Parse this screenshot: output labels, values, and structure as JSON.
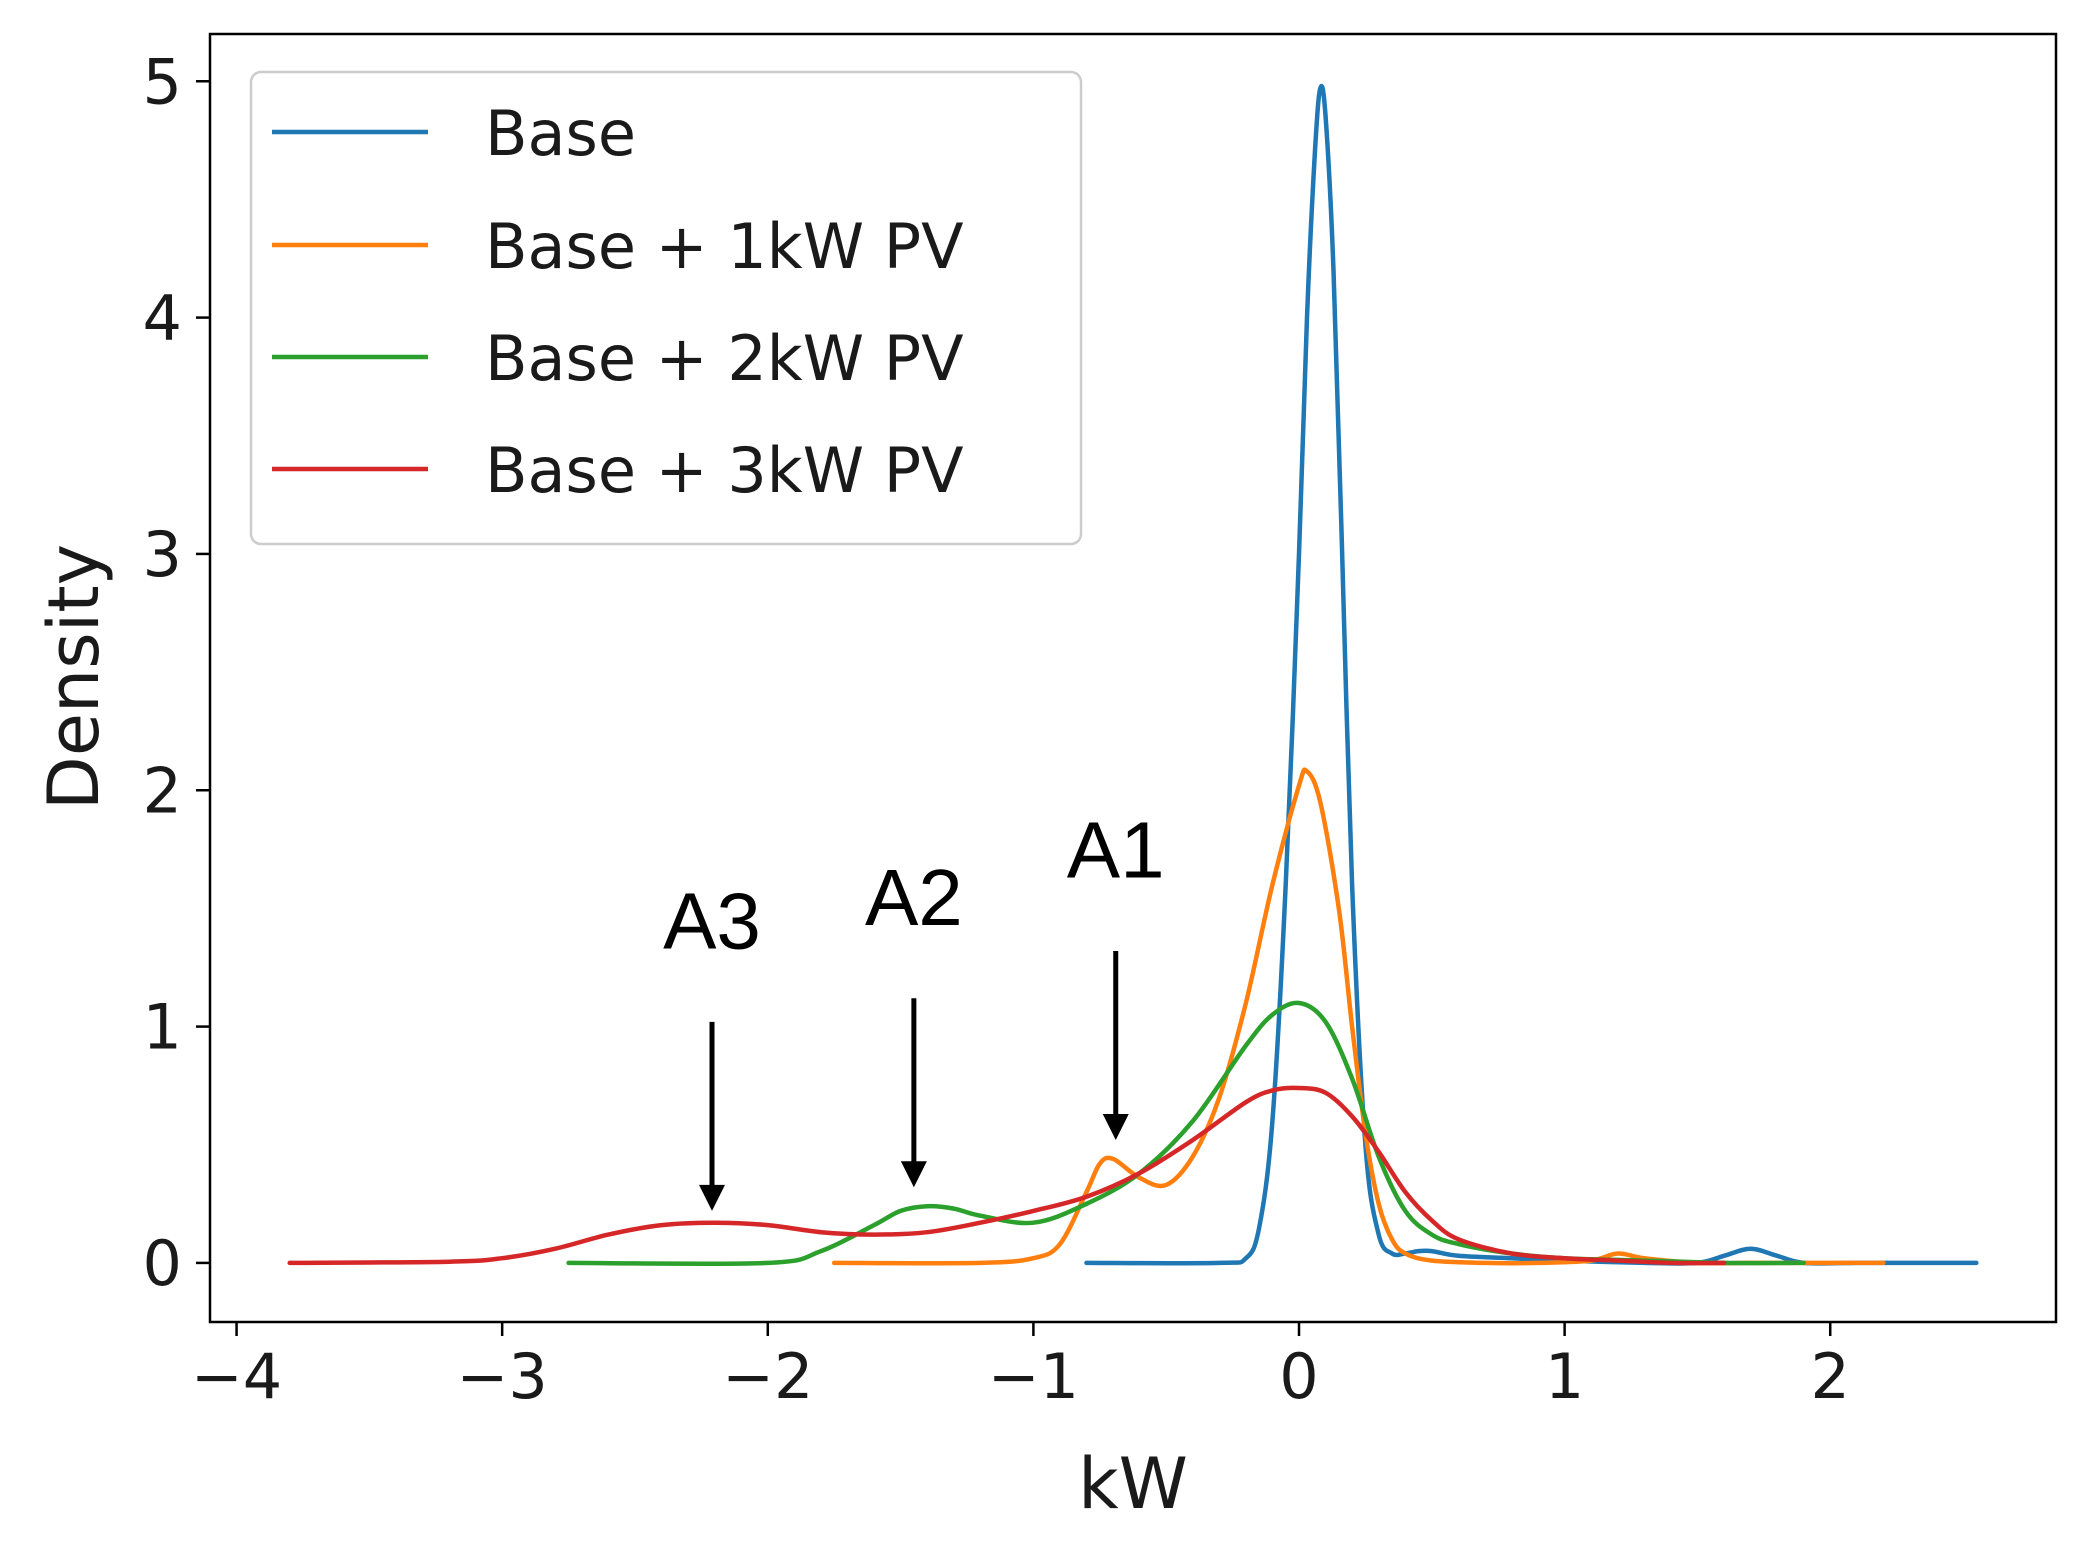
{
  "chart_data": {
    "type": "line",
    "title": "",
    "xlabel": "kW",
    "ylabel": "Density",
    "xlim": [
      -4.1,
      2.85
    ],
    "ylim": [
      -0.25,
      5.2
    ],
    "xticks": [
      -4,
      -3,
      -2,
      -1,
      0,
      1,
      2
    ],
    "xtick_labels": [
      "−4",
      "−3",
      "−2",
      "−1",
      "0",
      "1",
      "2"
    ],
    "yticks": [
      0,
      1,
      2,
      3,
      4,
      5
    ],
    "ytick_labels": [
      "0",
      "1",
      "2",
      "3",
      "4",
      "5"
    ],
    "grid": false,
    "legend_position": "top-left",
    "series": [
      {
        "name": "Base",
        "color": "#1f77b4",
        "x": [
          -0.8,
          -0.3,
          -0.2,
          -0.15,
          -0.1,
          -0.05,
          0.0,
          0.03,
          0.06,
          0.08,
          0.1,
          0.13,
          0.16,
          0.2,
          0.25,
          0.3,
          0.35,
          0.4,
          0.45,
          0.5,
          0.6,
          0.8,
          1.0,
          1.3,
          1.5,
          1.6,
          1.7,
          1.8,
          1.9,
          2.1,
          2.3,
          2.55
        ],
        "y": [
          0,
          0,
          0.02,
          0.15,
          0.6,
          1.6,
          3.0,
          4.0,
          4.7,
          4.97,
          4.85,
          4.2,
          3.1,
          1.6,
          0.5,
          0.12,
          0.04,
          0.04,
          0.05,
          0.05,
          0.03,
          0.02,
          0.01,
          0.0,
          0.0,
          0.03,
          0.06,
          0.03,
          0.0,
          0.0,
          0.0,
          0.0
        ]
      },
      {
        "name": "Base + 1kW PV",
        "color": "#ff7f0e",
        "x": [
          -1.75,
          -1.2,
          -1.0,
          -0.9,
          -0.8,
          -0.75,
          -0.7,
          -0.6,
          -0.5,
          -0.4,
          -0.3,
          -0.2,
          -0.1,
          0.0,
          0.03,
          0.08,
          0.15,
          0.2,
          0.25,
          0.3,
          0.35,
          0.4,
          0.5,
          0.7,
          0.9,
          1.1,
          1.2,
          1.3,
          1.5,
          1.7,
          1.9,
          2.2
        ],
        "y": [
          0,
          0,
          0.02,
          0.08,
          0.3,
          0.42,
          0.44,
          0.36,
          0.33,
          0.45,
          0.7,
          1.1,
          1.6,
          2.02,
          2.08,
          1.95,
          1.5,
          1.0,
          0.55,
          0.25,
          0.1,
          0.04,
          0.01,
          0.0,
          0.0,
          0.01,
          0.04,
          0.02,
          0.0,
          0.0,
          0.0,
          0.0
        ]
      },
      {
        "name": "Base + 2kW PV",
        "color": "#2ca02c",
        "x": [
          -2.75,
          -2.0,
          -1.8,
          -1.6,
          -1.5,
          -1.4,
          -1.3,
          -1.2,
          -1.0,
          -0.8,
          -0.6,
          -0.4,
          -0.2,
          -0.1,
          0.0,
          0.1,
          0.2,
          0.3,
          0.4,
          0.5,
          0.6,
          0.8,
          1.0,
          1.3,
          1.6,
          1.9
        ],
        "y": [
          0,
          0.0,
          0.05,
          0.16,
          0.22,
          0.24,
          0.23,
          0.2,
          0.17,
          0.25,
          0.38,
          0.6,
          0.92,
          1.05,
          1.1,
          1.02,
          0.78,
          0.45,
          0.22,
          0.12,
          0.08,
          0.04,
          0.02,
          0.01,
          0.0,
          0.0
        ]
      },
      {
        "name": "Base + 3kW PV",
        "color": "#d62728",
        "x": [
          -3.8,
          -3.2,
          -3.0,
          -2.8,
          -2.6,
          -2.4,
          -2.2,
          -2.0,
          -1.8,
          -1.6,
          -1.4,
          -1.2,
          -1.0,
          -0.8,
          -0.6,
          -0.4,
          -0.2,
          -0.1,
          0.0,
          0.1,
          0.2,
          0.3,
          0.4,
          0.5,
          0.6,
          0.8,
          1.0,
          1.2,
          1.4,
          1.6
        ],
        "y": [
          0,
          0.005,
          0.02,
          0.06,
          0.12,
          0.16,
          0.17,
          0.16,
          0.13,
          0.12,
          0.13,
          0.17,
          0.22,
          0.28,
          0.38,
          0.52,
          0.68,
          0.73,
          0.74,
          0.72,
          0.62,
          0.47,
          0.3,
          0.18,
          0.1,
          0.04,
          0.02,
          0.01,
          0.0,
          0.0
        ]
      }
    ],
    "annotations": [
      {
        "text": "A1",
        "arrow_x": -0.69,
        "arrow_from_y": 1.32,
        "arrow_to_y": 0.52,
        "label_x": -0.69,
        "label_y": 1.63
      },
      {
        "text": "A2",
        "arrow_x": -1.45,
        "arrow_from_y": 1.12,
        "arrow_to_y": 0.32,
        "label_x": -1.45,
        "label_y": 1.43
      },
      {
        "text": "A3",
        "arrow_x": -2.21,
        "arrow_from_y": 1.02,
        "arrow_to_y": 0.22,
        "label_x": -2.21,
        "label_y": 1.33
      }
    ]
  }
}
